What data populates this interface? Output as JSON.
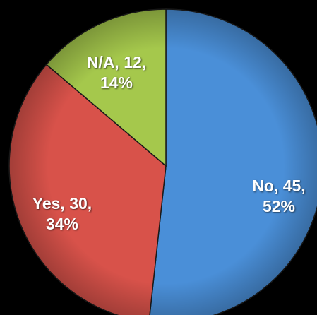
{
  "chart_data": {
    "type": "pie",
    "categories": [
      "No",
      "Yes",
      "N/A"
    ],
    "values": [
      45,
      30,
      12
    ],
    "value_labels": [
      "No, 45, 52%",
      "Yes, 30, 34%",
      "N/A, 12, 14%"
    ],
    "colors": [
      "#4a8fd8",
      "#d8524a",
      "#a5c84c"
    ]
  }
}
